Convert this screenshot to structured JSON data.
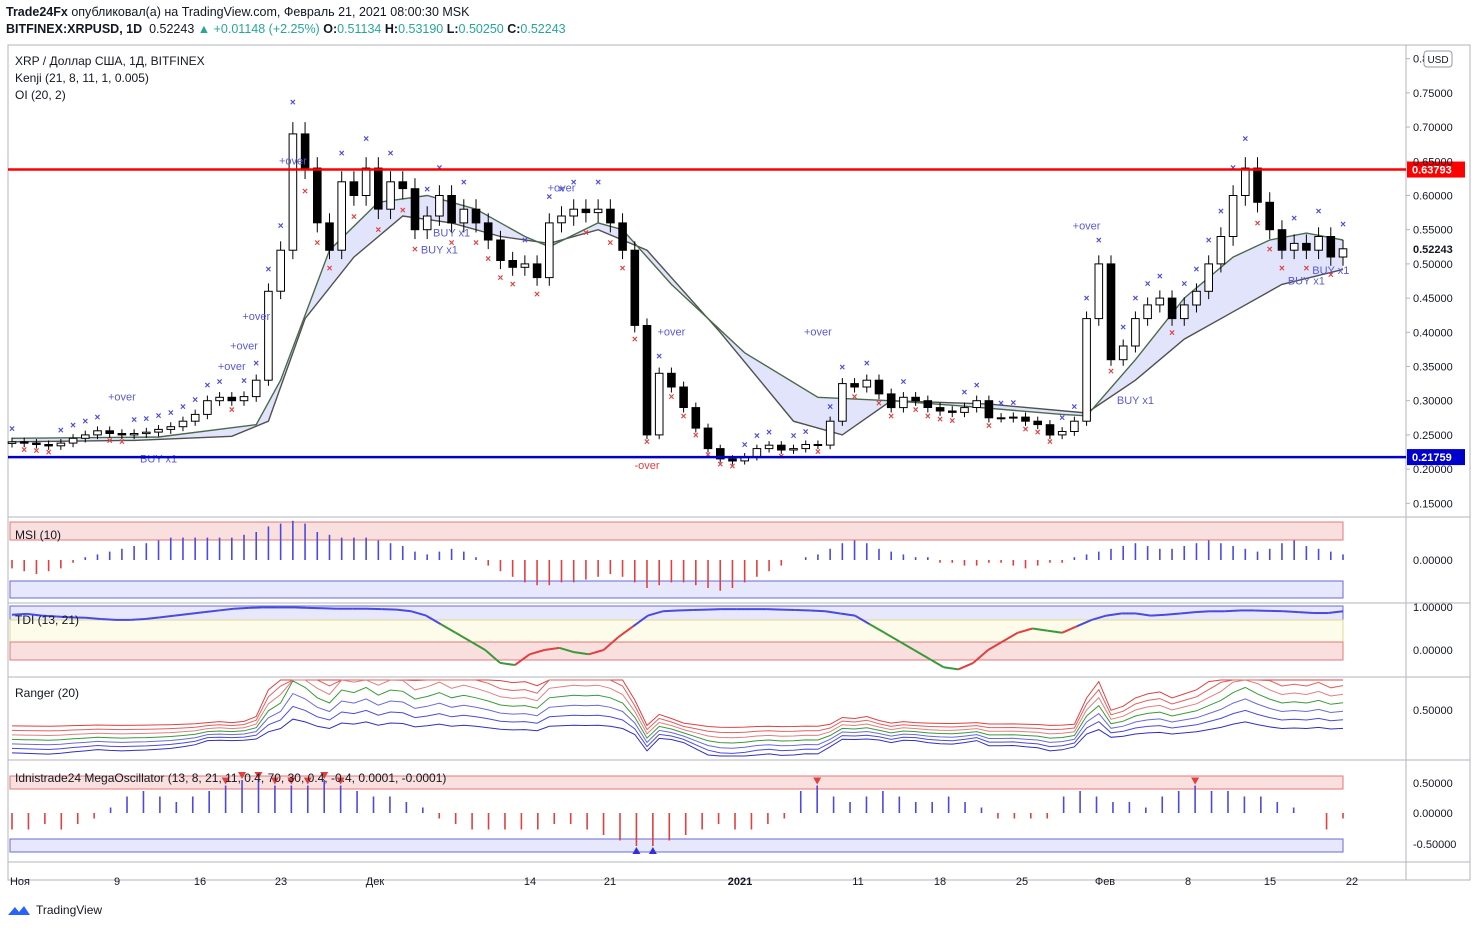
{
  "header": {
    "publisher": "Trade24Fx",
    "published_text": "опубликовал(а) на TradingView.com, Февраль 21, 2021 08:00:30 MSK",
    "symbol_line": "BITFINEX:XRPUSD, 1D",
    "last": "0.52243",
    "change": "+0.01148 (+2.25%)",
    "open_label": "O:",
    "open": "0.51134",
    "high_label": "H:",
    "high": "0.53190",
    "low_label": "L:",
    "low": "0.50250",
    "close_label": "C:",
    "close": "0.52243"
  },
  "legend": {
    "title": "XRP / Доллар США, 1Д, BITFINEX",
    "kenji": "Kenji (21, 8, 11, 1, 0.005)",
    "oi": "OI (20, 2)",
    "msi": "MSI (10)",
    "tdi": "TDI (13, 21)",
    "ranger": "Ranger (20)",
    "mega": "Idnistrade24 MegaOscillator (13, 8, 21, 11, 0.4, 70, 30, 0.4, -0.4, 0.0001, -0.0001)"
  },
  "currency_badge": "USD",
  "brand": "TradingView",
  "chart_data": {
    "type": "candlestick",
    "title": "XRP / Доллар США, 1Д, BITFINEX",
    "x_tick_labels": [
      "Ноя",
      "9",
      "16",
      "23",
      "Дек",
      "14",
      "21",
      "2021",
      "11",
      "18",
      "25",
      "Фев",
      "8",
      "15",
      "22"
    ],
    "price_axis_ticks": [
      0.15,
      0.2,
      0.25,
      0.3,
      0.35,
      0.4,
      0.45,
      0.5,
      0.55,
      0.6,
      0.65,
      0.7,
      0.75,
      0.8
    ],
    "price_axis_labels": [
      "0.15000",
      "0.20000",
      "0.25000",
      "0.30000",
      "0.35000",
      "0.40000",
      "0.45000",
      "0.50000",
      "0.55000",
      "0.60000",
      "0.65000",
      "0.70000",
      "0.75000",
      "0.80000"
    ],
    "ylim": [
      0.13,
      0.82
    ],
    "levels": [
      {
        "value": 0.63793,
        "label": "0.63793",
        "color": "#ff0000"
      },
      {
        "value": 0.21759,
        "label": "0.21759",
        "color": "#0000cc"
      }
    ],
    "last_price_label": "0.52243",
    "candles_close": [
      0.24,
      0.238,
      0.236,
      0.234,
      0.238,
      0.245,
      0.25,
      0.256,
      0.252,
      0.25,
      0.252,
      0.254,
      0.258,
      0.262,
      0.27,
      0.28,
      0.3,
      0.305,
      0.3,
      0.306,
      0.33,
      0.46,
      0.52,
      0.69,
      0.64,
      0.56,
      0.52,
      0.62,
      0.6,
      0.64,
      0.58,
      0.62,
      0.61,
      0.55,
      0.57,
      0.6,
      0.56,
      0.58,
      0.56,
      0.535,
      0.505,
      0.495,
      0.5,
      0.48,
      0.56,
      0.57,
      0.58,
      0.575,
      0.58,
      0.56,
      0.52,
      0.41,
      0.25,
      0.34,
      0.32,
      0.29,
      0.26,
      0.23,
      0.215,
      0.212,
      0.218,
      0.23,
      0.235,
      0.228,
      0.23,
      0.236,
      0.235,
      0.27,
      0.325,
      0.32,
      0.33,
      0.31,
      0.29,
      0.305,
      0.3,
      0.29,
      0.285,
      0.283,
      0.29,
      0.3,
      0.275,
      0.275,
      0.276,
      0.27,
      0.265,
      0.25,
      0.255,
      0.27,
      0.42,
      0.5,
      0.36,
      0.38,
      0.42,
      0.44,
      0.45,
      0.42,
      0.44,
      0.46,
      0.5,
      0.54,
      0.6,
      0.64,
      0.59,
      0.55,
      0.52,
      0.53,
      0.52,
      0.54,
      0.51,
      0.522
    ],
    "trend_line_upper": [
      [
        0,
        0.245
      ],
      [
        12,
        0.247
      ],
      [
        20,
        0.265
      ],
      [
        22,
        0.33
      ],
      [
        26,
        0.52
      ],
      [
        30,
        0.59
      ],
      [
        34,
        0.6
      ],
      [
        38,
        0.58
      ],
      [
        42,
        0.54
      ],
      [
        44,
        0.525
      ],
      [
        48,
        0.56
      ],
      [
        50,
        0.55
      ],
      [
        54,
        0.47
      ],
      [
        60,
        0.37
      ],
      [
        66,
        0.305
      ],
      [
        72,
        0.3
      ],
      [
        78,
        0.292
      ],
      [
        86,
        0.28
      ],
      [
        88,
        0.278
      ],
      [
        92,
        0.36
      ],
      [
        96,
        0.45
      ],
      [
        100,
        0.51
      ],
      [
        103,
        0.535
      ],
      [
        106,
        0.545
      ],
      [
        109,
        0.535
      ]
    ],
    "trend_line_lower": [
      [
        0,
        0.24
      ],
      [
        10,
        0.242
      ],
      [
        18,
        0.248
      ],
      [
        21,
        0.27
      ],
      [
        24,
        0.42
      ],
      [
        28,
        0.51
      ],
      [
        32,
        0.57
      ],
      [
        36,
        0.56
      ],
      [
        40,
        0.54
      ],
      [
        44,
        0.53
      ],
      [
        48,
        0.55
      ],
      [
        52,
        0.52
      ],
      [
        58,
        0.4
      ],
      [
        64,
        0.27
      ],
      [
        68,
        0.25
      ],
      [
        72,
        0.3
      ],
      [
        80,
        0.295
      ],
      [
        88,
        0.282
      ],
      [
        92,
        0.33
      ],
      [
        96,
        0.39
      ],
      [
        100,
        0.43
      ],
      [
        104,
        0.47
      ],
      [
        109,
        0.492
      ]
    ],
    "signals": [
      {
        "text": "+over",
        "i": 9,
        "price": 0.3
      },
      {
        "text": "BUY x1",
        "i": 12,
        "price": 0.21
      },
      {
        "text": "+over",
        "i": 18,
        "price": 0.345
      },
      {
        "text": "+over",
        "i": 19,
        "price": 0.375
      },
      {
        "text": "+over",
        "i": 20,
        "price": 0.418
      },
      {
        "text": "+over",
        "i": 23,
        "price": 0.645
      },
      {
        "text": "BUY x1",
        "i": 35,
        "price": 0.515
      },
      {
        "text": "BUY x1",
        "i": 36,
        "price": 0.54
      },
      {
        "text": "+over",
        "i": 45,
        "price": 0.606
      },
      {
        "text": "-over",
        "i": 52,
        "price": 0.2
      },
      {
        "text": "+over",
        "i": 54,
        "price": 0.395
      },
      {
        "text": "+over",
        "i": 66,
        "price": 0.395
      },
      {
        "text": "+over",
        "i": 88,
        "price": 0.55
      },
      {
        "text": "BUY x1",
        "i": 92,
        "price": 0.295
      },
      {
        "text": "BUY x1",
        "i": 106,
        "price": 0.47
      },
      {
        "text": "BUY x1",
        "i": 108,
        "price": 0.485
      }
    ],
    "msi": {
      "ticks": [
        "0.00000"
      ],
      "values": [
        -0.3,
        -0.4,
        -0.5,
        -0.4,
        -0.3,
        -0.1,
        0.1,
        0.2,
        0.3,
        0.4,
        0.5,
        0.6,
        0.7,
        0.8,
        0.8,
        0.8,
        0.8,
        0.8,
        0.8,
        0.9,
        1.0,
        1.2,
        1.3,
        1.4,
        1.3,
        1.0,
        0.9,
        0.8,
        0.8,
        0.8,
        0.7,
        0.6,
        0.5,
        0.3,
        0.2,
        0.3,
        0.4,
        0.3,
        0.1,
        -0.2,
        -0.4,
        -0.6,
        -0.8,
        -0.9,
        -0.9,
        -0.8,
        -0.8,
        -0.7,
        -0.6,
        -0.5,
        -0.6,
        -0.8,
        -1.0,
        -0.9,
        -0.8,
        -0.8,
        -0.9,
        -1.0,
        -1.1,
        -1.0,
        -0.8,
        -0.6,
        -0.4,
        -0.2,
        0.0,
        0.1,
        0.2,
        0.4,
        0.6,
        0.7,
        0.6,
        0.4,
        0.3,
        0.2,
        0.1,
        0.1,
        -0.1,
        -0.1,
        -0.2,
        -0.2,
        -0.1,
        -0.1,
        -0.2,
        -0.3,
        -0.2,
        -0.1,
        -0.1,
        0.1,
        0.2,
        0.3,
        0.4,
        0.5,
        0.6,
        0.5,
        0.4,
        0.4,
        0.5,
        0.6,
        0.7,
        0.6,
        0.5,
        0.4,
        0.3,
        0.4,
        0.6,
        0.7,
        0.5,
        0.4,
        0.3,
        0.2
      ]
    },
    "tdi": {
      "ticks": [
        "1.00000",
        "0.00000"
      ],
      "values": [
        0.82,
        0.84,
        0.8,
        0.78,
        0.76,
        0.75,
        0.72,
        0.7,
        0.7,
        0.72,
        0.76,
        0.8,
        0.84,
        0.88,
        0.92,
        0.96,
        0.98,
        0.99,
        0.99,
        0.99,
        0.98,
        0.97,
        0.96,
        0.96,
        0.96,
        0.95,
        0.94,
        0.9,
        0.8,
        0.6,
        0.4,
        0.2,
        0.0,
        -0.3,
        -0.35,
        -0.1,
        0.0,
        0.05,
        -0.05,
        -0.1,
        0.0,
        0.3,
        0.55,
        0.8,
        0.9,
        0.92,
        0.93,
        0.94,
        0.95,
        0.95,
        0.95,
        0.95,
        0.94,
        0.93,
        0.92,
        0.9,
        0.85,
        0.8,
        0.6,
        0.4,
        0.2,
        0.0,
        -0.2,
        -0.4,
        -0.45,
        -0.3,
        0.0,
        0.2,
        0.4,
        0.5,
        0.45,
        0.4,
        0.55,
        0.7,
        0.8,
        0.85,
        0.85,
        0.8,
        0.82,
        0.85,
        0.88,
        0.9,
        0.9,
        0.92,
        0.92,
        0.91,
        0.9,
        0.88,
        0.86,
        0.86,
        0.9
      ]
    },
    "ranger": {
      "ticks": [
        "0.50000"
      ],
      "series_count": 7
    },
    "mega_oscillator": {
      "ticks": [
        "0.50000",
        "0.00000",
        "-0.50000"
      ],
      "values": [
        -0.3,
        -0.3,
        -0.2,
        -0.3,
        -0.2,
        -0.1,
        0.1,
        0.3,
        0.4,
        0.3,
        0.2,
        0.3,
        0.4,
        0.5,
        0.6,
        0.6,
        0.5,
        0.5,
        0.5,
        0.6,
        0.5,
        0.4,
        0.3,
        0.3,
        0.2,
        0.1,
        -0.1,
        -0.2,
        -0.3,
        -0.3,
        -0.3,
        -0.3,
        -0.3,
        -0.2,
        -0.2,
        -0.3,
        -0.4,
        -0.5,
        -0.6,
        -0.6,
        -0.5,
        -0.4,
        -0.3,
        -0.2,
        -0.3,
        -0.3,
        -0.2,
        -0.1,
        0.4,
        0.5,
        0.3,
        0.2,
        0.3,
        0.4,
        0.3,
        0.2,
        0.2,
        0.3,
        0.2,
        0.1,
        -0.1,
        -0.1,
        -0.1,
        -0.1,
        0.3,
        0.4,
        0.3,
        0.2,
        0.2,
        0.1,
        0.3,
        0.4,
        0.5,
        0.4,
        0.4,
        0.3,
        0.3,
        0.2,
        0.1,
        0.0,
        -0.3,
        -0.1
      ]
    }
  }
}
